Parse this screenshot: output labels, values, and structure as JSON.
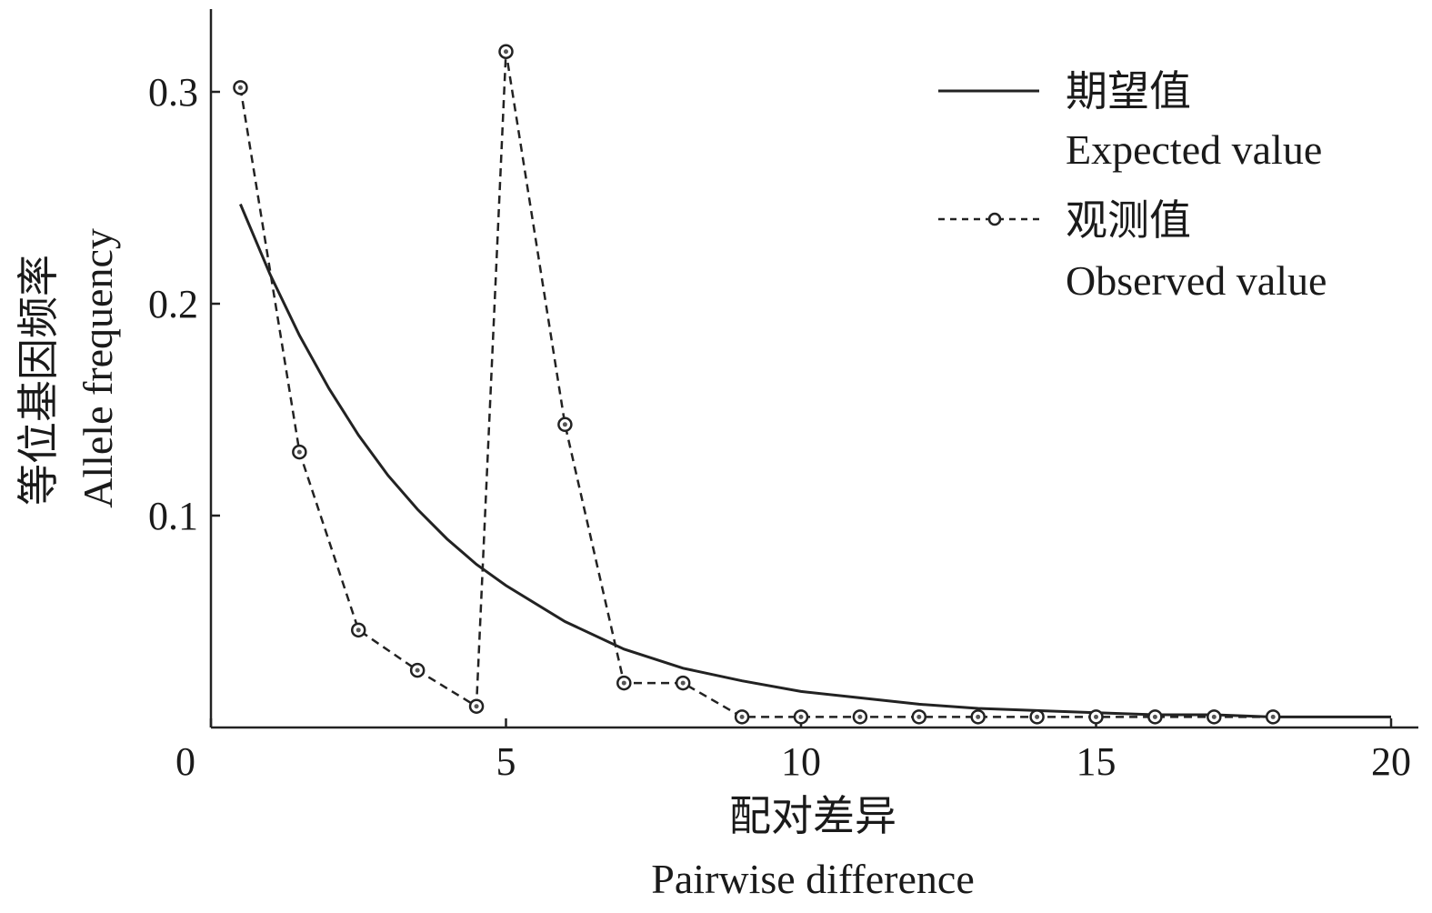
{
  "chart_data": {
    "type": "line",
    "xlabel": "配对差异",
    "xlabel_en": "Pairwise difference",
    "ylabel": "等位基因频率",
    "ylabel_en": "Allele frequency",
    "xlim": [
      0,
      20
    ],
    "ylim": [
      0,
      0.34
    ],
    "xticks": [
      0,
      5,
      10,
      15,
      20
    ],
    "yticks": [
      0.1,
      0.2,
      0.3
    ],
    "grid": false,
    "legend_position": "top-right",
    "series": [
      {
        "name": "期望值",
        "name_en": "Expected value",
        "style": "solid",
        "markers": false,
        "x": [
          0.5,
          1,
          1.5,
          2,
          2.5,
          3,
          3.5,
          4,
          4.5,
          5,
          6,
          7,
          8,
          9,
          10,
          11,
          12,
          13,
          14,
          15,
          16,
          17,
          18,
          19,
          20
        ],
        "y": [
          0.247,
          0.214,
          0.185,
          0.16,
          0.138,
          0.119,
          0.103,
          0.089,
          0.077,
          0.067,
          0.05,
          0.037,
          0.028,
          0.022,
          0.017,
          0.014,
          0.011,
          0.009,
          0.008,
          0.007,
          0.006,
          0.006,
          0.005,
          0.005,
          0.005
        ]
      },
      {
        "name": "观测值",
        "name_en": "Observed value",
        "style": "dashed",
        "markers": true,
        "x": [
          0.5,
          1.5,
          2.5,
          3.5,
          4.5,
          5,
          6,
          7,
          8,
          9,
          10,
          11,
          12,
          13,
          14,
          15,
          16,
          17,
          18
        ],
        "y": [
          0.302,
          0.13,
          0.046,
          0.027,
          0.01,
          0.319,
          0.143,
          0.021,
          0.021,
          0.005,
          0.005,
          0.005,
          0.005,
          0.005,
          0.005,
          0.005,
          0.005,
          0.005,
          0.005
        ]
      }
    ]
  }
}
